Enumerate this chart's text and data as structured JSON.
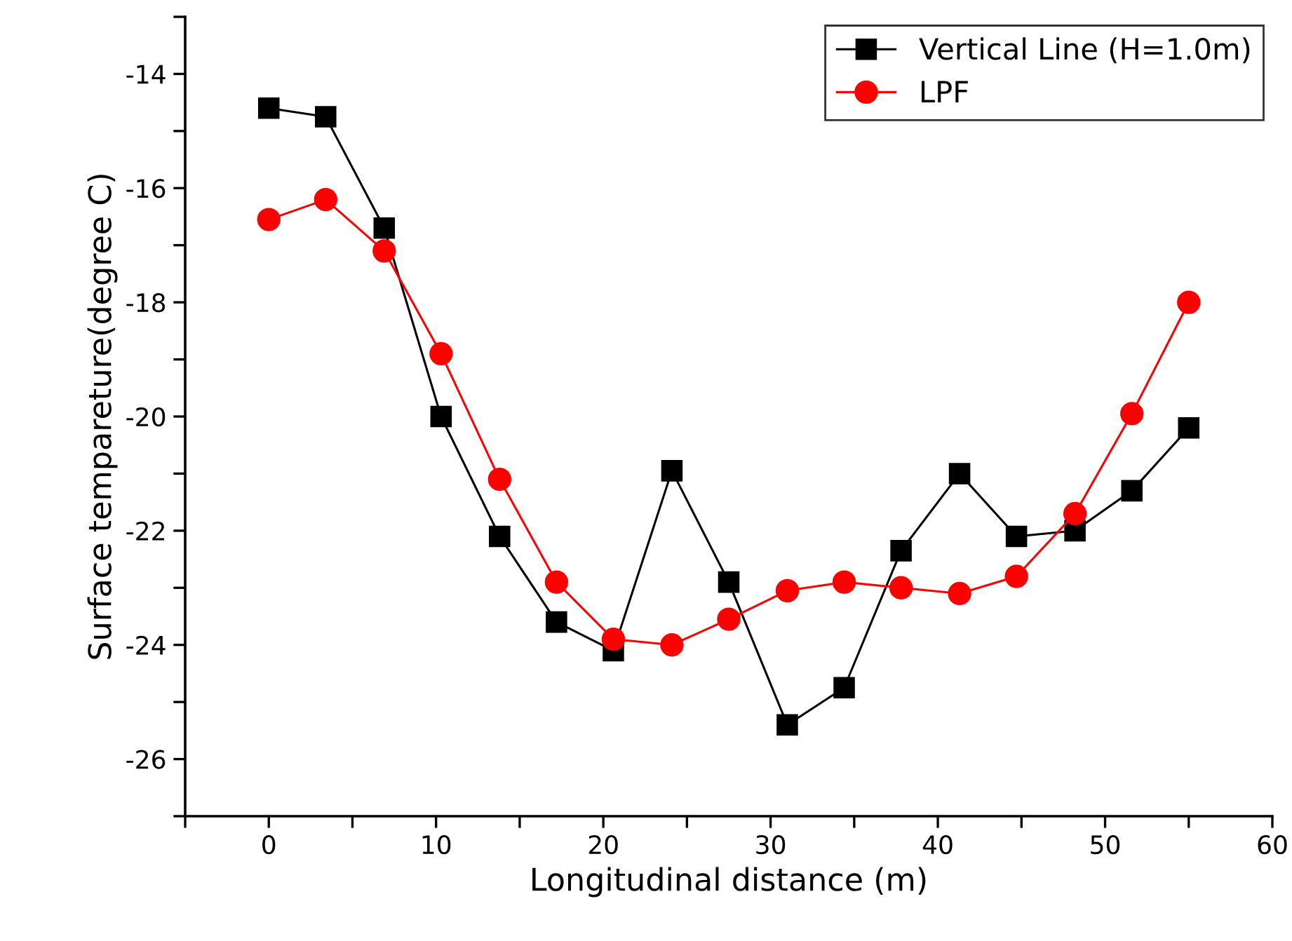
{
  "chart_data": {
    "type": "line",
    "xlabel": "Longitudinal distance (m)",
    "ylabel": "Surface tempareture(degree C)",
    "x": [
      0,
      3.4,
      6.9,
      10.3,
      13.8,
      17.2,
      20.6,
      24.1,
      27.5,
      31.0,
      34.4,
      37.8,
      41.3,
      44.7,
      48.2,
      51.6,
      55.0
    ],
    "series": [
      {
        "name": "Vertical Line (H=1.0m)",
        "color": "#000000",
        "marker": "square",
        "values": [
          -14.6,
          -14.75,
          -16.7,
          -20.0,
          -22.1,
          -23.6,
          -24.1,
          -20.95,
          -22.9,
          -25.4,
          -24.75,
          -22.35,
          -21.0,
          -22.1,
          -22.0,
          -21.3,
          -20.2
        ]
      },
      {
        "name": "LPF",
        "color": "#ff0000",
        "marker": "circle",
        "values": [
          -16.55,
          -16.2,
          -17.1,
          -18.9,
          -21.1,
          -22.9,
          -23.9,
          -24.0,
          -23.55,
          -23.05,
          -22.9,
          -23.0,
          -23.1,
          -22.8,
          -21.7,
          -19.95,
          -18.0
        ]
      }
    ],
    "xlim": [
      -5,
      60
    ],
    "xticks": [
      {
        "value": -5,
        "label": null
      },
      0,
      {
        "value": 5,
        "label": null
      },
      10,
      {
        "value": 15,
        "label": null
      },
      20,
      {
        "value": 25,
        "label": null
      },
      30,
      {
        "value": 35,
        "label": null
      },
      40,
      {
        "value": 45,
        "label": null
      },
      50,
      {
        "value": 55,
        "label": null
      },
      60
    ],
    "ylim": [
      -27,
      -13
    ],
    "yticks": [
      {
        "value": -27,
        "label": null
      },
      -26,
      {
        "value": -25,
        "label": null
      },
      -24,
      {
        "value": -23,
        "label": null
      },
      -22,
      {
        "value": -21,
        "label": null
      },
      -20,
      {
        "value": -19,
        "label": null
      },
      -18,
      {
        "value": -17,
        "label": null
      },
      -16,
      {
        "value": -15,
        "label": null
      },
      -14,
      {
        "value": -13,
        "label": null
      }
    ],
    "grid": false,
    "legend": "top right",
    "line_style": "solid"
  }
}
